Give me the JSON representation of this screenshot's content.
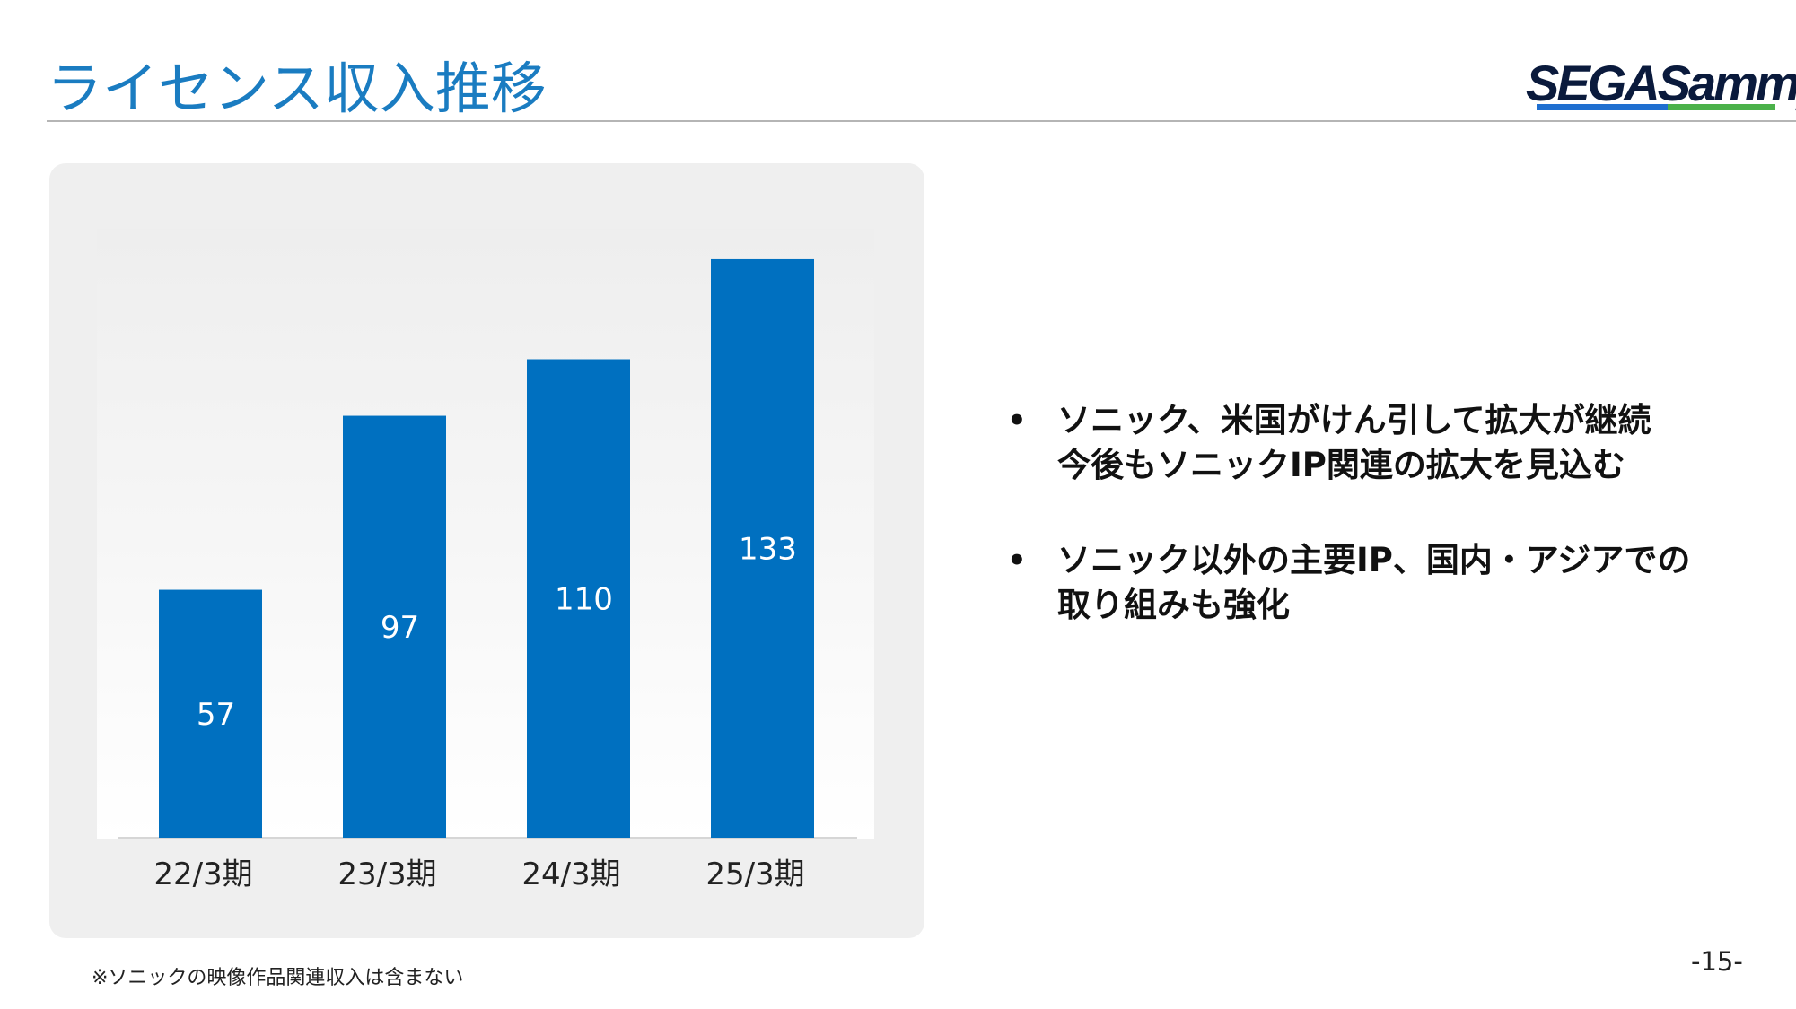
{
  "header": {
    "title": "ライセンス収入推移",
    "logo_text": "SEGASammy"
  },
  "colors": {
    "title": "#1a7cc1",
    "bar": "#0070c0",
    "panel": "#efefef",
    "logo_blue": "#1f6fd0",
    "logo_green": "#4bb14a"
  },
  "chart_data": {
    "type": "bar",
    "categories": [
      "22/3期",
      "23/3期",
      "24/3期",
      "25/3期"
    ],
    "values": [
      57,
      97,
      110,
      133
    ],
    "title": "",
    "xlabel": "",
    "ylabel": "",
    "ylim": [
      0,
      140
    ],
    "data_labels": [
      "57",
      "97",
      "110",
      "133"
    ],
    "grid": false,
    "legend": "none"
  },
  "bullets": [
    {
      "lines": [
        "ソニック、米国がけん引して拡大が継続",
        "今後もソニックIP関連の拡大を見込む"
      ]
    },
    {
      "lines": [
        "ソニック以外の主要IP、国内・アジアでの",
        "取り組みも強化"
      ]
    }
  ],
  "footnote": "※ソニックの映像作品関連収入は含まない",
  "page_number": "-15-"
}
